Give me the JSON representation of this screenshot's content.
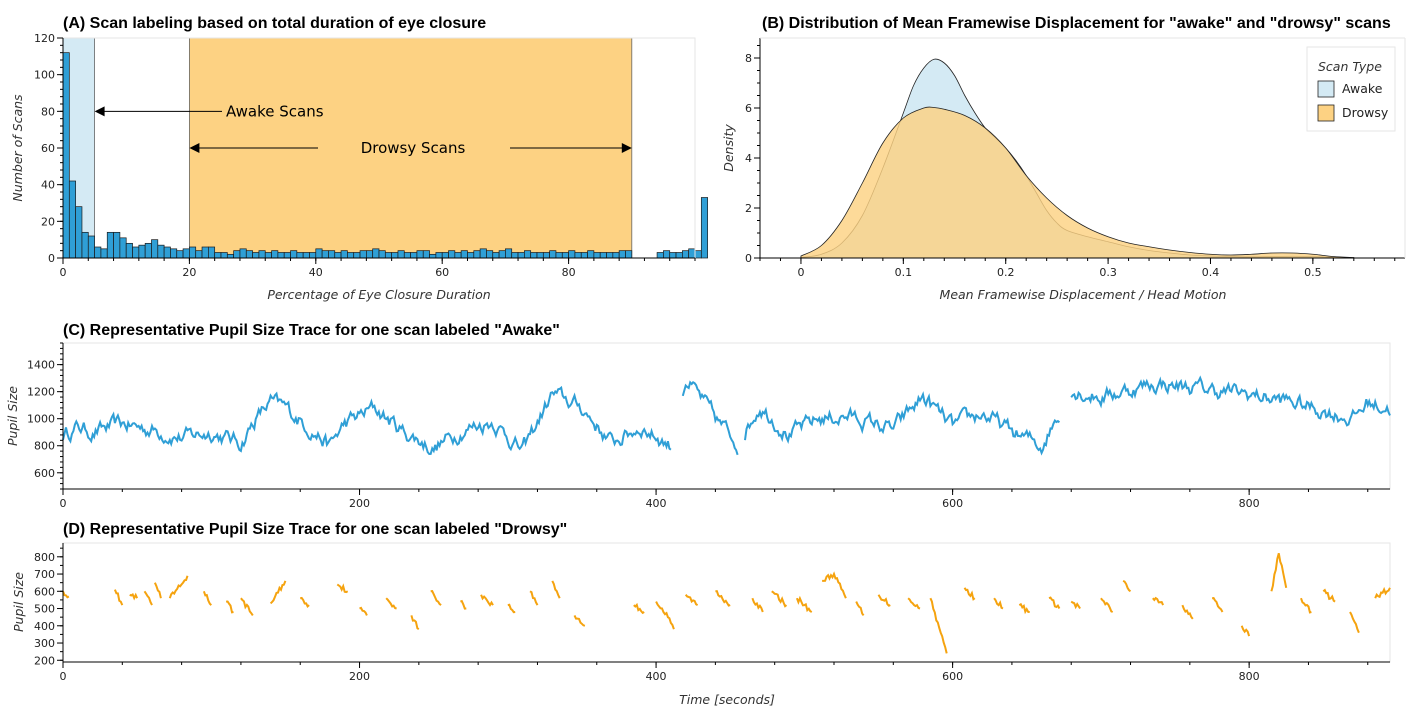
{
  "chart_data": [
    {
      "id": "A",
      "type": "bar",
      "title": "(A) Scan labeling based on total duration of eye closure",
      "xlabel": "Percentage of Eye Closure Duration",
      "ylabel": "Number of Scans",
      "xlim": [
        0,
        100
      ],
      "ylim": [
        0,
        120
      ],
      "xticks": [
        0,
        20,
        40,
        60,
        80
      ],
      "yticks": [
        0,
        20,
        40,
        60,
        80,
        100,
        120
      ],
      "bin_width": 1,
      "bin_start": 0,
      "values": [
        112,
        42,
        28,
        14,
        12,
        6,
        5,
        14,
        14,
        11,
        8,
        6,
        7,
        8,
        10,
        7,
        6,
        5,
        4,
        5,
        6,
        4,
        6,
        6,
        3,
        3,
        2,
        4,
        5,
        4,
        3,
        4,
        3,
        4,
        3,
        3,
        4,
        3,
        3,
        3,
        5,
        4,
        4,
        3,
        4,
        3,
        3,
        4,
        4,
        5,
        4,
        3,
        3,
        4,
        3,
        3,
        4,
        4,
        2,
        3,
        3,
        4,
        3,
        4,
        3,
        4,
        5,
        4,
        3,
        4,
        5,
        3,
        3,
        4,
        3,
        3,
        3,
        4,
        3,
        3,
        4,
        3,
        3,
        4,
        3,
        3,
        3,
        3,
        4,
        4,
        0,
        0,
        0,
        0,
        3,
        4,
        3,
        3,
        4,
        5,
        4,
        33
      ],
      "bar_color": "#2f9fd6",
      "regions": [
        {
          "label": "Awake Scans",
          "x0": 0,
          "x1": 5,
          "color": "#d4eaf4"
        },
        {
          "label": "Drowsy Scans",
          "x0": 20,
          "x1": 90,
          "color": "#fdd283"
        }
      ],
      "annotations": [
        {
          "text": "Awake Scans",
          "arrow_to_x": 5,
          "y": 80
        },
        {
          "text": "Drowsy Scans",
          "arrow_from_x": 20,
          "arrow_to_x": 90,
          "y": 60
        }
      ]
    },
    {
      "id": "B",
      "type": "area",
      "title": "(B) Distribution of Mean Framewise Displacement for \"awake\" and \"drowsy\" scans",
      "xlabel": "Mean Framewise Displacement / Head Motion",
      "ylabel": "Density",
      "xlim": [
        -0.04,
        0.59
      ],
      "ylim": [
        0,
        8.8
      ],
      "xticks": [
        0,
        0.1,
        0.2,
        0.3,
        0.4,
        0.5
      ],
      "yticks": [
        0,
        2,
        4,
        6,
        8
      ],
      "legend": {
        "title": "Scan Type",
        "position": "top-right"
      },
      "series": [
        {
          "name": "Awake",
          "color": "#d4eaf4",
          "x": [
            0.0,
            0.02,
            0.04,
            0.06,
            0.08,
            0.1,
            0.11,
            0.12,
            0.13,
            0.14,
            0.15,
            0.16,
            0.17,
            0.18,
            0.19,
            0.2,
            0.21,
            0.22,
            0.23,
            0.24,
            0.25,
            0.26,
            0.28,
            0.3,
            0.32,
            0.34,
            0.36,
            0.38,
            0.4,
            0.42,
            0.44,
            0.46,
            0.48,
            0.5,
            0.52,
            0.54
          ],
          "y": [
            0.02,
            0.15,
            0.6,
            1.7,
            3.6,
            5.8,
            6.9,
            7.6,
            7.95,
            7.8,
            7.3,
            6.5,
            5.8,
            5.2,
            4.8,
            4.4,
            3.9,
            3.3,
            2.6,
            1.9,
            1.4,
            1.1,
            0.85,
            0.65,
            0.45,
            0.3,
            0.2,
            0.12,
            0.08,
            0.06,
            0.05,
            0.06,
            0.07,
            0.06,
            0.03,
            0.01
          ]
        },
        {
          "name": "Drowsy",
          "color": "#fdd283",
          "x": [
            0.0,
            0.02,
            0.04,
            0.06,
            0.08,
            0.1,
            0.12,
            0.13,
            0.14,
            0.16,
            0.18,
            0.2,
            0.22,
            0.24,
            0.26,
            0.28,
            0.3,
            0.32,
            0.34,
            0.36,
            0.38,
            0.4,
            0.42,
            0.44,
            0.46,
            0.48,
            0.5,
            0.52,
            0.54
          ],
          "y": [
            0.08,
            0.5,
            1.5,
            3.0,
            4.6,
            5.6,
            6.0,
            6.02,
            5.95,
            5.7,
            5.2,
            4.4,
            3.3,
            2.4,
            1.7,
            1.2,
            0.85,
            0.6,
            0.45,
            0.32,
            0.22,
            0.15,
            0.12,
            0.15,
            0.2,
            0.2,
            0.15,
            0.06,
            0.02
          ]
        }
      ]
    },
    {
      "id": "C",
      "type": "line",
      "title": "(C) Representative Pupil Size Trace for one scan labeled \"Awake\"",
      "xlabel": "",
      "ylabel": "Pupil Size",
      "xlim": [
        0,
        895
      ],
      "ylim": [
        480,
        1560
      ],
      "xticks": [
        0,
        200,
        400,
        600,
        800
      ],
      "yticks": [
        600,
        800,
        1000,
        1200,
        1400
      ],
      "color": "#2f9fd6",
      "gaps": [
        [
          410,
          418
        ],
        [
          455,
          460
        ],
        [
          672,
          680
        ]
      ],
      "keypoints": [
        [
          0,
          880
        ],
        [
          10,
          940
        ],
        [
          20,
          900
        ],
        [
          40,
          960
        ],
        [
          60,
          920
        ],
        [
          80,
          860
        ],
        [
          100,
          900
        ],
        [
          120,
          820
        ],
        [
          130,
          1000
        ],
        [
          140,
          1120
        ],
        [
          150,
          1080
        ],
        [
          170,
          900
        ],
        [
          180,
          800
        ],
        [
          190,
          960
        ],
        [
          210,
          1080
        ],
        [
          230,
          900
        ],
        [
          250,
          780
        ],
        [
          270,
          920
        ],
        [
          290,
          980
        ],
        [
          310,
          760
        ],
        [
          330,
          1180
        ],
        [
          350,
          1080
        ],
        [
          370,
          820
        ],
        [
          390,
          940
        ],
        [
          410,
          800
        ],
        [
          420,
          1300
        ],
        [
          440,
          1000
        ],
        [
          455,
          820
        ],
        [
          470,
          1100
        ],
        [
          490,
          880
        ],
        [
          510,
          1000
        ],
        [
          530,
          1020
        ],
        [
          560,
          920
        ],
        [
          580,
          1160
        ],
        [
          600,
          940
        ],
        [
          620,
          1040
        ],
        [
          640,
          900
        ],
        [
          660,
          800
        ],
        [
          680,
          1220
        ],
        [
          700,
          1160
        ],
        [
          720,
          1220
        ],
        [
          740,
          1260
        ],
        [
          770,
          1220
        ],
        [
          800,
          1180
        ],
        [
          830,
          1120
        ],
        [
          850,
          1060
        ],
        [
          870,
          1000
        ],
        [
          880,
          1120
        ],
        [
          895,
          1080
        ]
      ]
    },
    {
      "id": "D",
      "type": "line",
      "title": "(D) Representative Pupil Size Trace for one scan labeled \"Drowsy\"",
      "xlabel": "Time [seconds]",
      "ylabel": "Pupil Size",
      "xlim": [
        0,
        895
      ],
      "ylim": [
        190,
        880
      ],
      "xticks": [
        0,
        200,
        400,
        600,
        800
      ],
      "yticks": [
        200,
        300,
        400,
        500,
        600,
        700,
        800
      ],
      "color": "#f5a30f",
      "segments": [
        [
          [
            0,
            600
          ],
          [
            4,
            570
          ]
        ],
        [
          [
            35,
            610
          ],
          [
            40,
            520
          ]
        ],
        [
          [
            45,
            580
          ],
          [
            50,
            560
          ]
        ],
        [
          [
            55,
            600
          ],
          [
            60,
            520
          ]
        ],
        [
          [
            62,
            650
          ],
          [
            66,
            560
          ]
        ],
        [
          [
            72,
            560
          ],
          [
            80,
            640
          ],
          [
            84,
            690
          ]
        ],
        [
          [
            95,
            600
          ],
          [
            100,
            520
          ]
        ],
        [
          [
            110,
            540
          ],
          [
            115,
            480
          ]
        ],
        [
          [
            120,
            560
          ],
          [
            128,
            460
          ]
        ],
        [
          [
            140,
            530
          ],
          [
            150,
            660
          ]
        ],
        [
          [
            160,
            560
          ],
          [
            166,
            520
          ]
        ],
        [
          [
            185,
            640
          ],
          [
            192,
            600
          ]
        ],
        [
          [
            200,
            500
          ],
          [
            205,
            460
          ]
        ],
        [
          [
            218,
            560
          ],
          [
            225,
            500
          ]
        ],
        [
          [
            235,
            460
          ],
          [
            240,
            380
          ]
        ],
        [
          [
            248,
            600
          ],
          [
            255,
            520
          ]
        ],
        [
          [
            268,
            540
          ],
          [
            272,
            500
          ]
        ],
        [
          [
            282,
            580
          ],
          [
            290,
            520
          ]
        ],
        [
          [
            300,
            520
          ],
          [
            305,
            480
          ]
        ],
        [
          [
            315,
            600
          ],
          [
            320,
            520
          ]
        ],
        [
          [
            330,
            660
          ],
          [
            335,
            560
          ]
        ],
        [
          [
            345,
            460
          ],
          [
            352,
            400
          ]
        ],
        [
          [
            385,
            520
          ],
          [
            392,
            480
          ]
        ],
        [
          [
            400,
            540
          ],
          [
            408,
            450
          ],
          [
            412,
            380
          ]
        ],
        [
          [
            420,
            580
          ],
          [
            428,
            520
          ]
        ],
        [
          [
            440,
            600
          ],
          [
            450,
            520
          ]
        ],
        [
          [
            465,
            560
          ],
          [
            472,
            480
          ]
        ],
        [
          [
            478,
            600
          ],
          [
            488,
            520
          ]
        ],
        [
          [
            495,
            560
          ],
          [
            505,
            480
          ]
        ],
        [
          [
            512,
            660
          ],
          [
            520,
            700
          ],
          [
            528,
            560
          ]
        ],
        [
          [
            535,
            540
          ],
          [
            540,
            460
          ]
        ],
        [
          [
            550,
            580
          ],
          [
            558,
            520
          ]
        ],
        [
          [
            570,
            560
          ],
          [
            578,
            500
          ]
        ],
        [
          [
            585,
            560
          ],
          [
            592,
            360
          ],
          [
            596,
            240
          ]
        ],
        [
          [
            608,
            620
          ],
          [
            615,
            560
          ]
        ],
        [
          [
            628,
            560
          ],
          [
            634,
            500
          ]
        ],
        [
          [
            645,
            520
          ],
          [
            652,
            480
          ]
        ],
        [
          [
            665,
            560
          ],
          [
            672,
            500
          ]
        ],
        [
          [
            680,
            540
          ],
          [
            686,
            500
          ]
        ],
        [
          [
            700,
            560
          ],
          [
            708,
            480
          ]
        ],
        [
          [
            715,
            660
          ],
          [
            720,
            600
          ]
        ],
        [
          [
            735,
            560
          ],
          [
            742,
            520
          ]
        ],
        [
          [
            755,
            520
          ],
          [
            762,
            440
          ]
        ],
        [
          [
            775,
            560
          ],
          [
            782,
            480
          ]
        ],
        [
          [
            795,
            400
          ],
          [
            800,
            340
          ]
        ],
        [
          [
            815,
            600
          ],
          [
            820,
            820
          ],
          [
            825,
            620
          ]
        ],
        [
          [
            835,
            560
          ],
          [
            842,
            480
          ]
        ],
        [
          [
            850,
            600
          ],
          [
            858,
            540
          ]
        ],
        [
          [
            868,
            480
          ],
          [
            874,
            360
          ]
        ],
        [
          [
            885,
            560
          ],
          [
            895,
            620
          ]
        ]
      ]
    }
  ]
}
